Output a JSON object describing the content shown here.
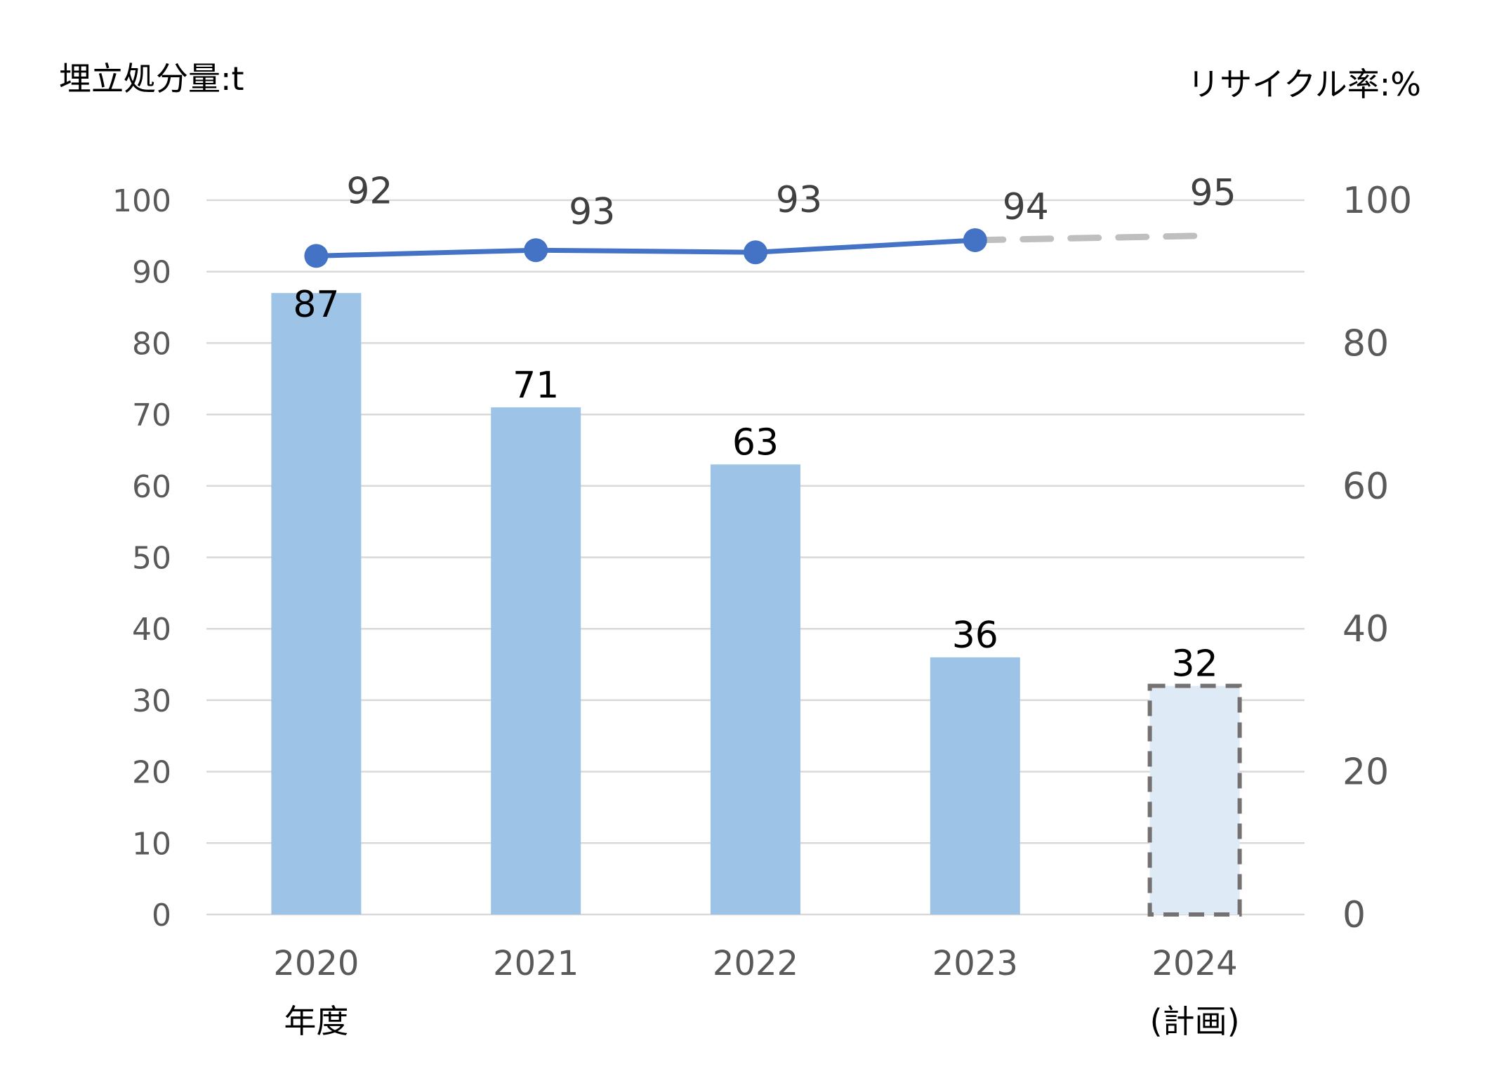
{
  "chart_data": {
    "type": "bar",
    "left_axis_title": "埋立処分量:t",
    "right_axis_title": "リサイクル率:%",
    "categories": [
      "2020",
      "2021",
      "2022",
      "2023",
      "2024"
    ],
    "category_sublabels": [
      "年度",
      "",
      "",
      "",
      "(計画)"
    ],
    "left_ylim": [
      0,
      100
    ],
    "left_ticks": [
      "0",
      "10",
      "20",
      "30",
      "40",
      "50",
      "60",
      "70",
      "80",
      "90",
      "100"
    ],
    "right_ylim": [
      0,
      100
    ],
    "right_ticks": [
      "0",
      "20",
      "40",
      "60",
      "80",
      "100"
    ],
    "grid": true,
    "bars": {
      "values": [
        87,
        71,
        63,
        36,
        32
      ],
      "labels": [
        "87",
        "71",
        "63",
        "36",
        "32"
      ],
      "color": "#9dc3e6",
      "plan_color": "#deebf7",
      "plan_border_color": "#767171",
      "planned": [
        false,
        false,
        false,
        false,
        true
      ]
    },
    "line": {
      "values": [
        92.2,
        93,
        92.7,
        94.4,
        95
      ],
      "labels": [
        "92",
        "93",
        "93",
        "94",
        "95"
      ],
      "color": "#4472c4",
      "plan_color": "#bfbfbf",
      "planned": [
        false,
        false,
        false,
        false,
        true
      ]
    }
  }
}
